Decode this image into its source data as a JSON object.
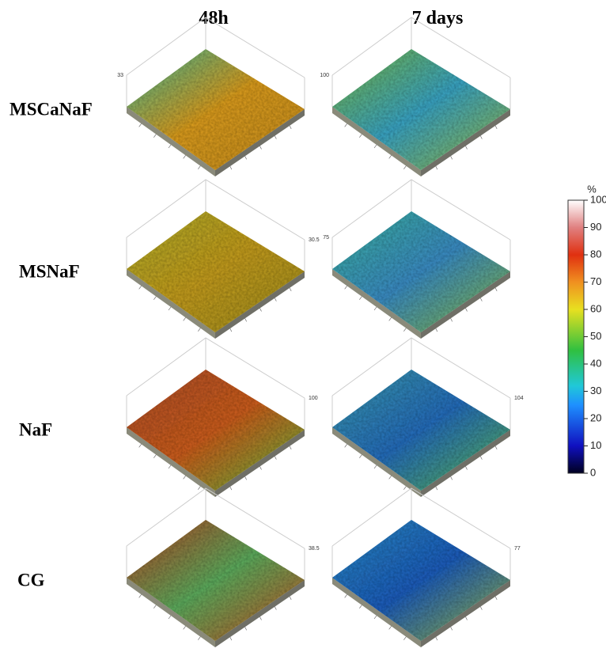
{
  "columns": [
    "48h",
    "7 days"
  ],
  "rows": [
    {
      "label": "MSCaNaF",
      "panels": [
        {
          "zmax": "33"
        },
        {
          "zmax": "100"
        }
      ]
    },
    {
      "label": "MSNaF",
      "panels": [
        {
          "zmax": "30.5"
        },
        {
          "zmax": "75"
        }
      ]
    },
    {
      "label": "NaF",
      "panels": [
        {
          "zmax": "100"
        },
        {
          "zmax": "104"
        }
      ]
    },
    {
      "label": "CG",
      "panels": [
        {
          "zmax": "38.5"
        },
        {
          "zmax": "77"
        }
      ]
    }
  ],
  "colorbar": {
    "unit": "%",
    "lim": [
      0,
      100
    ],
    "ticks": [
      0,
      10,
      20,
      30,
      40,
      50,
      60,
      70,
      80,
      90,
      100
    ]
  }
}
